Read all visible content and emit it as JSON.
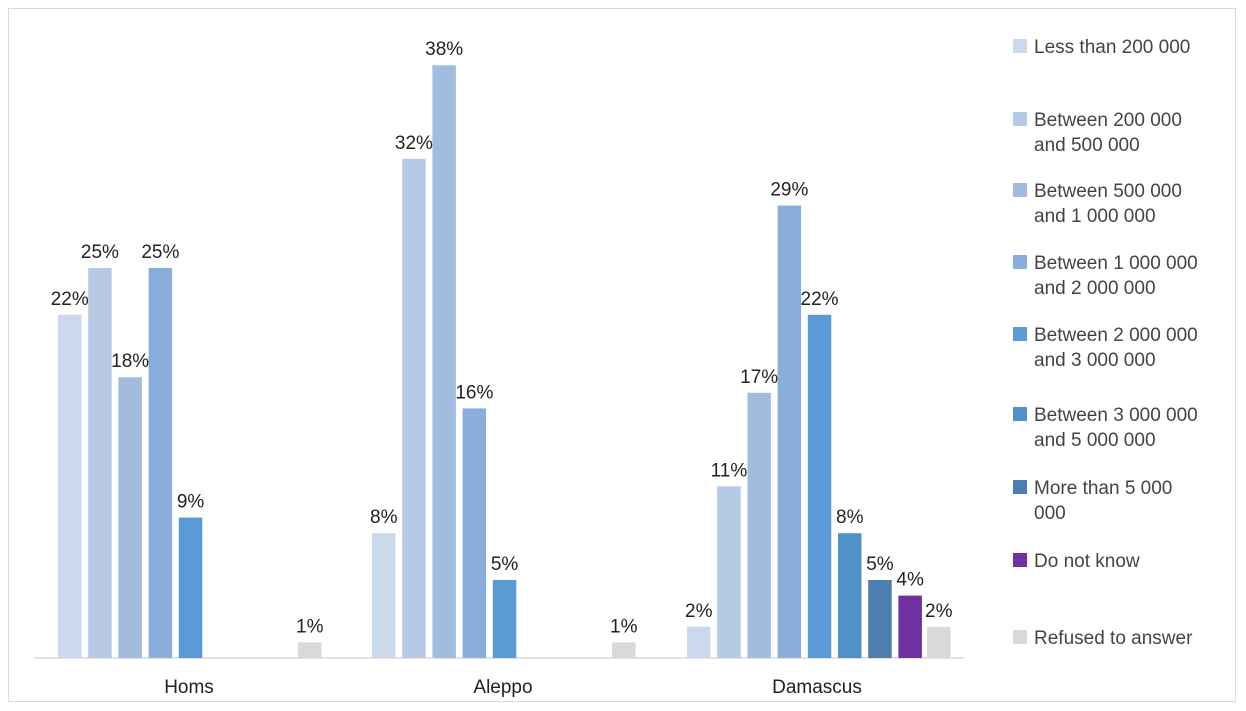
{
  "chart_data": {
    "type": "bar",
    "title": "",
    "xlabel": "",
    "ylabel": "",
    "ylim": [
      0,
      40
    ],
    "grid": false,
    "legend_position": "right",
    "categories": [
      "Homs",
      "Aleppo",
      "Damascus"
    ],
    "series": [
      {
        "name": "Less than 200 000",
        "color": "#cbd9ec",
        "values": [
          22,
          8,
          2
        ],
        "labels": [
          "22%",
          "8%",
          "2%"
        ]
      },
      {
        "name": "Between 200 000 and 500 000",
        "color": "#b6cae6",
        "values": [
          25,
          32,
          11
        ],
        "labels": [
          "25%",
          "32%",
          "11%"
        ]
      },
      {
        "name": "Between 500 000 and 1 000 000",
        "color": "#a2bce0",
        "values": [
          18,
          38,
          17
        ],
        "labels": [
          "18%",
          "38%",
          "17%"
        ]
      },
      {
        "name": "Between 1 000 000 and 2 000 000",
        "color": "#8aaedc",
        "values": [
          25,
          16,
          29
        ],
        "labels": [
          "25%",
          "16%",
          "29%"
        ]
      },
      {
        "name": "Between 2 000 000 and 3 000 000",
        "color": "#5b9bd5",
        "values": [
          9,
          5,
          22
        ],
        "labels": [
          "9%",
          "5%",
          "22%"
        ]
      },
      {
        "name": "Between 3 000 000 and 5 000 000",
        "color": "#5290c8",
        "values": [
          null,
          null,
          8
        ],
        "labels": [
          "",
          "",
          "8%"
        ]
      },
      {
        "name": "More than  5 000 000",
        "color": "#4a7fb0",
        "values": [
          null,
          null,
          5
        ],
        "labels": [
          "",
          "",
          "5%"
        ]
      },
      {
        "name": "Do not know",
        "color": "#7030a0",
        "values": [
          null,
          null,
          4
        ],
        "labels": [
          "",
          "",
          "4%"
        ]
      },
      {
        "name": "Refused to answer",
        "color": "#d9d9d9",
        "values": [
          1,
          1,
          2
        ],
        "labels": [
          "1%",
          "1%",
          "2%"
        ]
      }
    ]
  }
}
